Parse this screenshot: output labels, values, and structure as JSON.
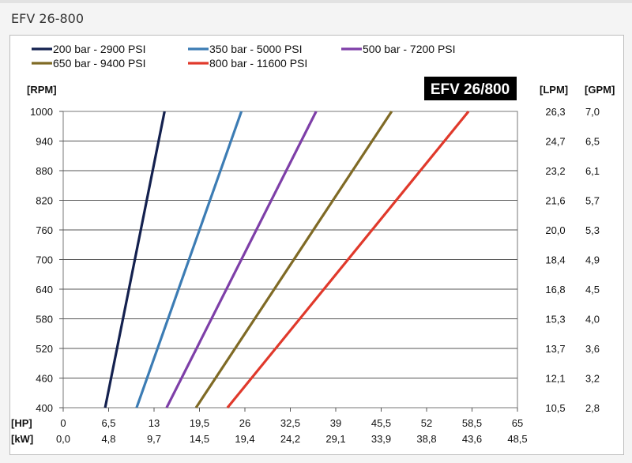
{
  "page": {
    "title": "EFV 26-800"
  },
  "chart_data": {
    "type": "line",
    "title": "EFV 26/800",
    "y_left": {
      "unit": "[RPM]",
      "min": 400,
      "max": 1000,
      "ticks": [
        1000,
        940,
        880,
        820,
        760,
        700,
        640,
        580,
        520,
        460,
        400
      ]
    },
    "y_right_lpm": {
      "unit": "[LPM]",
      "labels": [
        "26,3",
        "24,7",
        "23,2",
        "21,6",
        "20,0",
        "18,4",
        "16,8",
        "15,3",
        "13,7",
        "12,1",
        "10,5"
      ]
    },
    "y_right_gpm": {
      "unit": "[GPM]",
      "labels": [
        "7,0",
        "6,5",
        "6,1",
        "5,7",
        "5,3",
        "4,9",
        "4,5",
        "4,0",
        "3,6",
        "3,2",
        "2,8"
      ]
    },
    "x_hp": {
      "unit": "[HP]",
      "min": 0,
      "max": 65,
      "ticks": [
        0,
        6.5,
        13,
        19.5,
        26,
        32.5,
        39,
        45.5,
        52,
        58.5,
        65
      ],
      "labels": [
        "0",
        "6,5",
        "13",
        "19,5",
        "26",
        "32,5",
        "39",
        "45,5",
        "52",
        "58,5",
        "65"
      ]
    },
    "x_kw": {
      "unit": "[kW]",
      "labels": [
        "0,0",
        "4,8",
        "9,7",
        "14,5",
        "19,4",
        "24,2",
        "29,1",
        "33,9",
        "38,8",
        "43,6",
        "48,5"
      ]
    },
    "grid": true,
    "legend_position": "top",
    "series": [
      {
        "name": "200 bar - 2900 PSI",
        "color": "#14214f",
        "x": [
          6,
          14.5
        ],
        "y": [
          400,
          1000
        ]
      },
      {
        "name": "350 bar - 5000 PSI",
        "color": "#3c7cb4",
        "x": [
          10.5,
          25.5
        ],
        "y": [
          400,
          1000
        ]
      },
      {
        "name": "500 bar - 7200 PSI",
        "color": "#7e3fa8",
        "x": [
          14.8,
          36.2
        ],
        "y": [
          400,
          1000
        ]
      },
      {
        "name": "650 bar - 9400 PSI",
        "color": "#7f6a25",
        "x": [
          19,
          47
        ],
        "y": [
          400,
          1000
        ]
      },
      {
        "name": "800 bar - 11600 PSI",
        "color": "#e0392b",
        "x": [
          23.5,
          58
        ],
        "y": [
          400,
          1000
        ]
      }
    ]
  }
}
